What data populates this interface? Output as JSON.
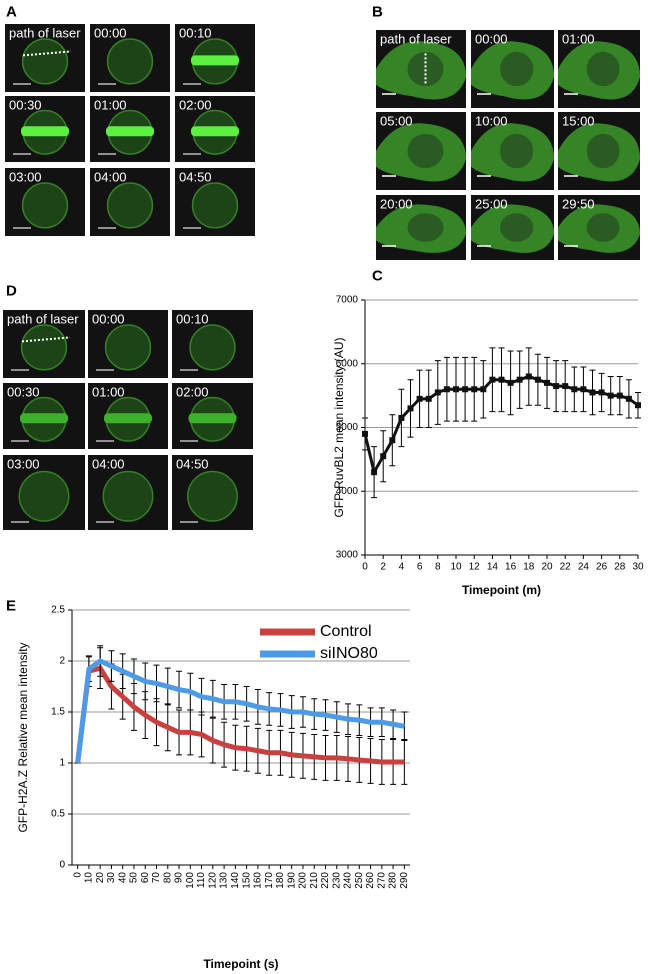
{
  "panels": [
    {
      "label": "A",
      "tiles": [
        "path of laser",
        "00:00",
        "00:10",
        "00:30",
        "01:00",
        "02:00",
        "03:00",
        "04:00",
        "04:50"
      ]
    },
    {
      "label": "B",
      "tiles": [
        "path of laser",
        "00:00",
        "01:00",
        "05:00",
        "10:00",
        "15:00",
        "20:00",
        "25:00",
        "29:50"
      ]
    },
    {
      "label": "D",
      "tiles": [
        "path of laser",
        "00:00",
        "00:10",
        "00:30",
        "01:00",
        "02:00",
        "03:00",
        "04:00",
        "04:50"
      ]
    }
  ],
  "chart_data": [
    {
      "type": "line",
      "label": "C",
      "xlabel": "Timepoint (m)",
      "ylabel": "GFP-RuvBL2 mean intensity (AU)",
      "color": "#111111",
      "grid": true,
      "x": [
        0,
        1,
        2,
        3,
        4,
        5,
        6,
        7,
        8,
        9,
        10,
        11,
        12,
        13,
        14,
        15,
        16,
        17,
        18,
        19,
        20,
        21,
        22,
        23,
        24,
        25,
        26,
        27,
        28,
        29,
        30
      ],
      "values": [
        4900,
        4300,
        4550,
        4800,
        5150,
        5300,
        5450,
        5450,
        5550,
        5600,
        5600,
        5600,
        5600,
        5600,
        5750,
        5750,
        5700,
        5750,
        5800,
        5750,
        5700,
        5650,
        5650,
        5600,
        5600,
        5550,
        5550,
        5500,
        5500,
        5450,
        5350
      ],
      "errors": [
        250,
        400,
        400,
        400,
        450,
        450,
        450,
        450,
        500,
        500,
        500,
        500,
        500,
        450,
        500,
        500,
        500,
        450,
        450,
        400,
        400,
        400,
        400,
        350,
        350,
        350,
        300,
        300,
        300,
        300,
        200
      ],
      "xlim": [
        0,
        30
      ],
      "xticks": [
        0,
        2,
        4,
        6,
        8,
        10,
        12,
        14,
        16,
        18,
        20,
        22,
        24,
        26,
        28,
        30
      ],
      "ylim": [
        3000,
        7000
      ],
      "yticks": [
        3000,
        4000,
        5000,
        6000,
        7000
      ]
    },
    {
      "type": "line",
      "label": "E",
      "xlabel": "Timepoint (s)",
      "ylabel": "GFP-H2A.Z Relative mean intensity",
      "grid": true,
      "legend": "upper right",
      "x": [
        0,
        10,
        20,
        30,
        40,
        50,
        60,
        70,
        80,
        90,
        100,
        110,
        120,
        130,
        140,
        150,
        160,
        170,
        180,
        190,
        200,
        210,
        220,
        230,
        240,
        250,
        260,
        270,
        280,
        290
      ],
      "series": [
        {
          "name": "Control",
          "color": "#c9403f",
          "values": [
            1,
            1.9,
            1.93,
            1.75,
            1.65,
            1.55,
            1.47,
            1.4,
            1.35,
            1.3,
            1.3,
            1.28,
            1.22,
            1.18,
            1.15,
            1.14,
            1.12,
            1.1,
            1.1,
            1.08,
            1.07,
            1.06,
            1.05,
            1.05,
            1.04,
            1.03,
            1.02,
            1.01,
            1.01,
            1.01
          ],
          "errors": [
            0,
            0.15,
            0.2,
            0.22,
            0.22,
            0.23,
            0.23,
            0.23,
            0.23,
            0.22,
            0.22,
            0.22,
            0.22,
            0.22,
            0.22,
            0.22,
            0.22,
            0.22,
            0.22,
            0.22,
            0.22,
            0.22,
            0.22,
            0.22,
            0.22,
            0.22,
            0.22,
            0.22,
            0.22,
            0.22
          ]
        },
        {
          "name": "siINO80",
          "color": "#4d9be6",
          "values": [
            1,
            1.92,
            2,
            1.95,
            1.9,
            1.85,
            1.8,
            1.78,
            1.75,
            1.72,
            1.7,
            1.65,
            1.63,
            1.6,
            1.6,
            1.58,
            1.55,
            1.53,
            1.52,
            1.5,
            1.5,
            1.48,
            1.47,
            1.45,
            1.43,
            1.42,
            1.4,
            1.4,
            1.38,
            1.36
          ],
          "errors": [
            0,
            0.12,
            0.15,
            0.15,
            0.17,
            0.17,
            0.18,
            0.18,
            0.18,
            0.18,
            0.18,
            0.18,
            0.18,
            0.17,
            0.17,
            0.17,
            0.17,
            0.16,
            0.16,
            0.16,
            0.15,
            0.15,
            0.15,
            0.15,
            0.15,
            0.15,
            0.14,
            0.14,
            0.14,
            0.14
          ]
        }
      ],
      "xlim": [
        -5,
        295
      ],
      "xticks": [
        0,
        10,
        20,
        30,
        40,
        50,
        60,
        70,
        80,
        90,
        100,
        110,
        120,
        130,
        140,
        150,
        160,
        170,
        180,
        190,
        200,
        210,
        220,
        230,
        240,
        250,
        260,
        270,
        280,
        290
      ],
      "ylim": [
        0,
        2.5
      ],
      "yticks": [
        0,
        0.5,
        1,
        1.5,
        2,
        2.5
      ]
    }
  ]
}
